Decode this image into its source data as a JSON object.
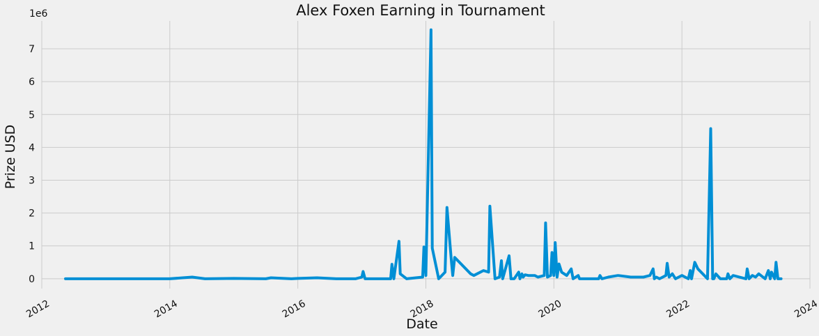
{
  "chart_data": {
    "type": "line",
    "title": "Alex Foxen Earning in Tournament",
    "xlabel": "Date",
    "ylabel": "Prize USD",
    "y_scale_label": "1e6",
    "x_ticks": [
      "2012",
      "2014",
      "2016",
      "2018",
      "2020",
      "2022",
      "2024"
    ],
    "y_ticks": [
      "0",
      "1",
      "2",
      "3",
      "4",
      "5",
      "6",
      "7"
    ],
    "xlim": [
      2012.0,
      2024.0
    ],
    "ylim": [
      -0.3,
      7.85
    ],
    "grid": true,
    "series": [
      {
        "color": "#008fd5",
        "x": [
          2012.37,
          2013.5,
          2014.0,
          2014.35,
          2014.55,
          2015.0,
          2015.5,
          2015.58,
          2015.9,
          2016.0,
          2016.3,
          2016.6,
          2016.9,
          2017.0,
          2017.02,
          2017.05,
          2017.1,
          2017.2,
          2017.45,
          2017.47,
          2017.5,
          2017.58,
          2017.6,
          2017.7,
          2017.95,
          2017.97,
          2018.0,
          2018.08,
          2018.1,
          2018.2,
          2018.3,
          2018.33,
          2018.4,
          2018.42,
          2018.45,
          2018.5,
          2018.7,
          2018.75,
          2018.9,
          2018.98,
          2019.0,
          2019.08,
          2019.15,
          2019.18,
          2019.2,
          2019.3,
          2019.33,
          2019.38,
          2019.45,
          2019.47,
          2019.5,
          2019.52,
          2019.55,
          2019.6,
          2019.7,
          2019.75,
          2019.85,
          2019.87,
          2019.9,
          2019.95,
          2019.97,
          2020.0,
          2020.02,
          2020.05,
          2020.08,
          2020.12,
          2020.2,
          2020.27,
          2020.3,
          2020.38,
          2020.4,
          2020.5,
          2020.7,
          2020.72,
          2020.75,
          2020.85,
          2021.0,
          2021.2,
          2021.4,
          2021.5,
          2021.55,
          2021.57,
          2021.6,
          2021.65,
          2021.75,
          2021.77,
          2021.8,
          2021.85,
          2021.9,
          2021.95,
          2022.0,
          2022.1,
          2022.13,
          2022.15,
          2022.2,
          2022.25,
          2022.4,
          2022.45,
          2022.48,
          2022.5,
          2022.53,
          2022.6,
          2022.7,
          2022.72,
          2022.75,
          2022.8,
          2023.0,
          2023.02,
          2023.05,
          2023.1,
          2023.15,
          2023.2,
          2023.3,
          2023.35,
          2023.38,
          2023.4,
          2023.45,
          2023.47,
          2023.5,
          2023.55
        ],
        "values": [
          0.0,
          0.0,
          0.0,
          0.05,
          0.0,
          0.01,
          0.0,
          0.03,
          0.0,
          0.01,
          0.03,
          0.0,
          0.0,
          0.05,
          0.22,
          0.0,
          0.0,
          0.0,
          0.0,
          0.44,
          0.0,
          1.14,
          0.15,
          0.0,
          0.05,
          0.97,
          0.1,
          7.58,
          0.93,
          0.0,
          0.2,
          2.17,
          0.5,
          0.1,
          0.65,
          0.55,
          0.15,
          0.1,
          0.25,
          0.2,
          2.21,
          0.0,
          0.05,
          0.55,
          0.0,
          0.7,
          0.0,
          0.0,
          0.2,
          0.0,
          0.15,
          0.05,
          0.12,
          0.1,
          0.1,
          0.05,
          0.1,
          1.7,
          0.05,
          0.1,
          0.8,
          0.1,
          1.1,
          0.05,
          0.45,
          0.2,
          0.1,
          0.3,
          0.0,
          0.1,
          0.0,
          0.0,
          0.0,
          0.1,
          0.0,
          0.05,
          0.1,
          0.05,
          0.05,
          0.1,
          0.3,
          0.0,
          0.05,
          0.0,
          0.1,
          0.47,
          0.05,
          0.15,
          0.0,
          0.05,
          0.1,
          0.0,
          0.25,
          0.0,
          0.5,
          0.3,
          0.0,
          4.57,
          0.0,
          0.0,
          0.15,
          0.0,
          0.0,
          0.15,
          0.0,
          0.1,
          0.0,
          0.3,
          0.0,
          0.1,
          0.05,
          0.15,
          0.0,
          0.25,
          0.0,
          0.2,
          0.0,
          0.5,
          0.0,
          0.0
        ]
      }
    ]
  }
}
